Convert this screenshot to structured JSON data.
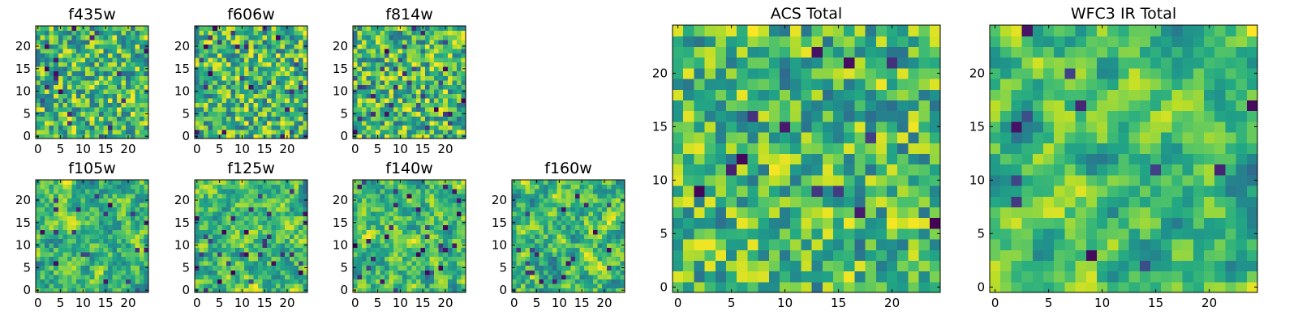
{
  "chart_data": [
    {
      "type": "heatmap",
      "title": "f435w",
      "xlabel": "",
      "ylabel": "",
      "xlim": [
        -0.5,
        24.5
      ],
      "ylim": [
        -0.5,
        24.5
      ],
      "xticks": [
        0,
        5,
        10,
        15,
        20
      ],
      "yticks": [
        0,
        5,
        10,
        15,
        20
      ],
      "grid_size": [
        25,
        25
      ],
      "colormap": "viridis",
      "pattern": {
        "seed": 11,
        "smooth": 0.0,
        "dark_fraction": 0.03
      }
    },
    {
      "type": "heatmap",
      "title": "f606w",
      "xlabel": "",
      "ylabel": "",
      "xlim": [
        -0.5,
        24.5
      ],
      "ylim": [
        -0.5,
        24.5
      ],
      "xticks": [
        0,
        5,
        10,
        15,
        20
      ],
      "yticks": [
        0,
        5,
        10,
        15,
        20
      ],
      "grid_size": [
        25,
        25
      ],
      "colormap": "viridis",
      "pattern": {
        "seed": 23,
        "smooth": 0.0,
        "dark_fraction": 0.04
      }
    },
    {
      "type": "heatmap",
      "title": "f814w",
      "xlabel": "",
      "ylabel": "",
      "xlim": [
        -0.5,
        24.5
      ],
      "ylim": [
        -0.5,
        24.5
      ],
      "xticks": [
        0,
        5,
        10,
        15,
        20
      ],
      "yticks": [
        0,
        5,
        10,
        15,
        20
      ],
      "grid_size": [
        25,
        25
      ],
      "colormap": "viridis",
      "pattern": {
        "seed": 37,
        "smooth": 0.0,
        "dark_fraction": 0.05
      }
    },
    {
      "type": "heatmap",
      "title": "f105w",
      "xlabel": "",
      "ylabel": "",
      "xlim": [
        -0.5,
        24.5
      ],
      "ylim": [
        -0.5,
        24.5
      ],
      "xticks": [
        0,
        5,
        10,
        15,
        20
      ],
      "yticks": [
        0,
        5,
        10,
        15,
        20
      ],
      "grid_size": [
        25,
        25
      ],
      "colormap": "viridis",
      "pattern": {
        "seed": 41,
        "smooth": 0.6,
        "dark_fraction": 0.03
      }
    },
    {
      "type": "heatmap",
      "title": "f125w",
      "xlabel": "",
      "ylabel": "",
      "xlim": [
        -0.5,
        24.5
      ],
      "ylim": [
        -0.5,
        24.5
      ],
      "xticks": [
        0,
        5,
        10,
        15,
        20
      ],
      "yticks": [
        0,
        5,
        10,
        15,
        20
      ],
      "grid_size": [
        25,
        25
      ],
      "colormap": "viridis",
      "pattern": {
        "seed": 53,
        "smooth": 0.6,
        "dark_fraction": 0.05
      }
    },
    {
      "type": "heatmap",
      "title": "f140w",
      "xlabel": "",
      "ylabel": "",
      "xlim": [
        -0.5,
        24.5
      ],
      "ylim": [
        -0.5,
        24.5
      ],
      "xticks": [
        0,
        5,
        10,
        15,
        20
      ],
      "yticks": [
        0,
        5,
        10,
        15,
        20
      ],
      "grid_size": [
        25,
        25
      ],
      "colormap": "viridis",
      "pattern": {
        "seed": 67,
        "smooth": 0.6,
        "dark_fraction": 0.05
      }
    },
    {
      "type": "heatmap",
      "title": "f160w",
      "xlabel": "",
      "ylabel": "",
      "xlim": [
        -0.5,
        24.5
      ],
      "ylim": [
        -0.5,
        24.5
      ],
      "xticks": [
        0,
        5,
        10,
        15,
        20
      ],
      "yticks": [
        0,
        5,
        10,
        15,
        20
      ],
      "grid_size": [
        25,
        25
      ],
      "colormap": "viridis",
      "pattern": {
        "seed": 79,
        "smooth": 0.6,
        "dark_fraction": 0.03
      }
    },
    {
      "type": "heatmap",
      "title": "ACS Total",
      "xlabel": "",
      "ylabel": "",
      "xlim": [
        -0.5,
        24.5
      ],
      "ylim": [
        -0.5,
        24.5
      ],
      "xticks": [
        0,
        5,
        10,
        15,
        20
      ],
      "yticks": [
        0,
        5,
        10,
        15,
        20
      ],
      "grid_size": [
        25,
        25
      ],
      "colormap": "viridis",
      "pattern": {
        "seed": 97,
        "smooth": 0.2,
        "dark_fraction": 0.02
      }
    },
    {
      "type": "heatmap",
      "title": "WFC3 IR Total",
      "xlabel": "",
      "ylabel": "",
      "xlim": [
        -0.5,
        24.5
      ],
      "ylim": [
        -0.5,
        24.5
      ],
      "xticks": [
        0,
        5,
        10,
        15,
        20
      ],
      "yticks": [
        0,
        5,
        10,
        15,
        20
      ],
      "grid_size": [
        25,
        25
      ],
      "colormap": "viridis",
      "pattern": {
        "seed": 113,
        "smooth": 0.75,
        "dark_fraction": 0.02
      }
    }
  ]
}
